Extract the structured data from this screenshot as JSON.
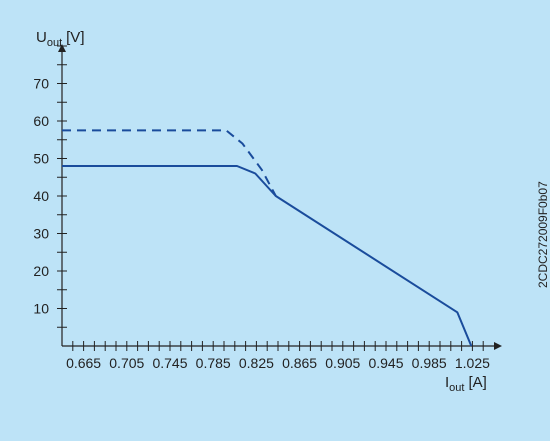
{
  "chart_data": {
    "type": "line",
    "ylabel_main": "U",
    "ylabel_sub": "out",
    "ylabel_unit": "[V]",
    "xlabel_main": "I",
    "xlabel_sub": "out",
    "xlabel_unit": "[A]",
    "xlim": [
      0.645,
      1.045
    ],
    "ylim": [
      0,
      80
    ],
    "x_ticks": [
      0.665,
      0.705,
      0.745,
      0.785,
      0.825,
      0.865,
      0.905,
      0.945,
      0.985,
      1.025
    ],
    "x_tick_labels": [
      "0.665",
      "0.705",
      "0.745",
      "0.785",
      "0.825",
      "0.865",
      "0.905",
      "0.945",
      "0.985",
      "1.025"
    ],
    "x_minor_step": 0.01,
    "y_ticks": [
      10,
      20,
      30,
      40,
      50,
      60,
      70
    ],
    "y_tick_labels": [
      "10",
      "20",
      "30",
      "40",
      "50",
      "60",
      "70"
    ],
    "y_minor_step": 5,
    "grid": false,
    "series": [
      {
        "style": "solid",
        "x": [
          0.645,
          0.807,
          0.824,
          0.843,
          1.011,
          1.024
        ],
        "y": [
          48,
          48,
          46,
          40,
          9,
          0
        ]
      },
      {
        "style": "dashed",
        "x": [
          0.645,
          0.797,
          0.812,
          0.83,
          0.843
        ],
        "y": [
          57.5,
          57.5,
          54,
          47,
          40
        ]
      }
    ],
    "side_label": "2CDC272009F0b07"
  },
  "colors": {
    "panel_background": "#bde3f7",
    "axis": "#222222",
    "line": "#1a4c9c",
    "text": "#222222"
  }
}
